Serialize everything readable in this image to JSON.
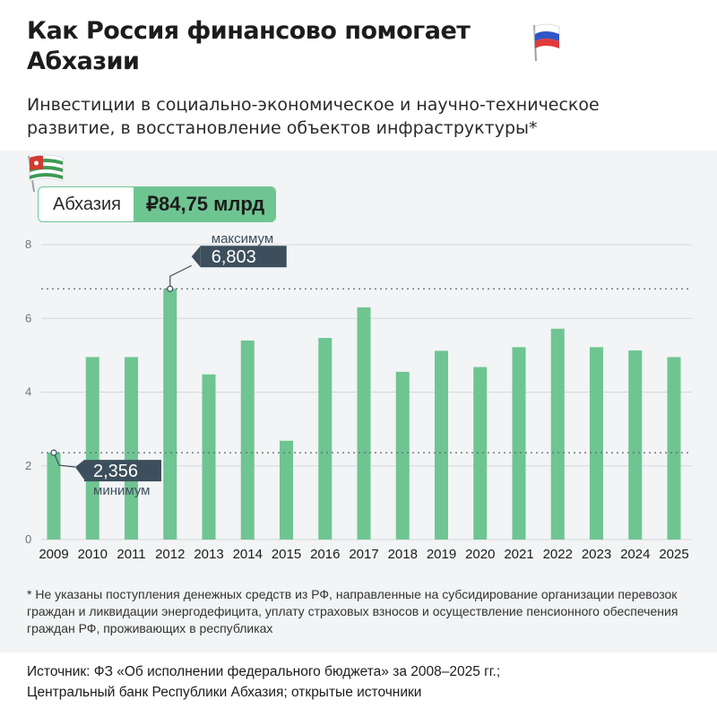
{
  "title": "Как Россия финансово помогает Абхазии",
  "subtitle": "Инвестиции в социально-экономическое и научно-техническое развитие, в восстановление объектов инфраструктуры*",
  "total": {
    "label": "Абхазия",
    "value": "₽84,75 млрд"
  },
  "colors": {
    "bar": "#6ec592",
    "callout": "#3d4f5c",
    "grid": "#d4d8db",
    "panel": "#f2f4f5"
  },
  "chart_data": {
    "type": "bar",
    "categories": [
      "2009",
      "2010",
      "2011",
      "2012",
      "2013",
      "2014",
      "2015",
      "2016",
      "2017",
      "2018",
      "2019",
      "2020",
      "2021",
      "2022",
      "2023",
      "2024",
      "2025"
    ],
    "values": [
      2.356,
      4.95,
      4.95,
      6.803,
      4.48,
      5.4,
      2.68,
      5.47,
      6.3,
      4.55,
      5.12,
      4.68,
      5.22,
      5.72,
      5.22,
      5.13,
      4.95
    ],
    "ylim": [
      0,
      8
    ],
    "yticks": [
      "0",
      "2",
      "4",
      "6",
      "8"
    ],
    "grid": true,
    "annotations": {
      "max": {
        "label": "максимум",
        "value": "6,803",
        "category": "2012"
      },
      "min": {
        "label": "минимум",
        "value": "2,356",
        "category": "2009"
      }
    }
  },
  "footnote": "* Не указаны поступления денежных средств из РФ, направленные на субсидирование организации перевозок граждан и ликвидации энергодефицита, уплату страховых взносов и осуществление пенсионного обеспечения граждан РФ, проживающих в республиках",
  "source_lines": [
    "Источник: ФЗ «Об исполнении федерального бюджета» за 2008–2025 гг.;",
    "Центральный банк Республики Абхазия; открытые источники"
  ]
}
